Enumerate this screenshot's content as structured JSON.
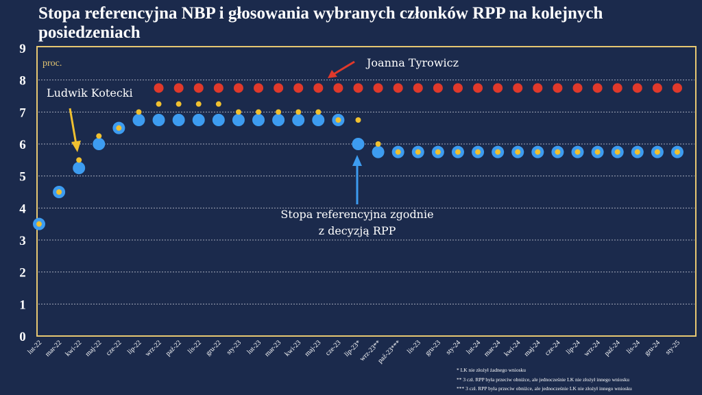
{
  "chart_data": {
    "type": "scatter",
    "title": "Stopa referencyjna NBP i głosowania wybranych członków RPP na kolejnych posiedzeniach",
    "ylabel": "proc.",
    "ylim": [
      0,
      9
    ],
    "yticks": [
      "0",
      "1",
      "2",
      "3",
      "4",
      "5",
      "6",
      "7",
      "8",
      "9"
    ],
    "grid": true,
    "categories": [
      "lut-22",
      "mar-22",
      "kwi-22",
      "maj-22",
      "cze-22",
      "lip-22",
      "wrz-22",
      "paź-22",
      "lis-22",
      "gru-22",
      "sty-23",
      "lut-23",
      "mar-23",
      "kwi-23",
      "maj-23",
      "cze-23",
      "lip-23*",
      "wrz-23**",
      "paź-23***",
      "lis-23",
      "gru-23",
      "sty-24",
      "lut-24",
      "mar-24",
      "kwi-24",
      "maj-24",
      "cze-24",
      "lip-24",
      "wrz-24",
      "paź-24",
      "lis-24",
      "gru-24",
      "sty-25"
    ],
    "series": [
      {
        "name": "Stopa referencyjna",
        "color": "#3d9cf0",
        "values": [
          3.5,
          4.5,
          5.25,
          6.0,
          6.5,
          6.75,
          6.75,
          6.75,
          6.75,
          6.75,
          6.75,
          6.75,
          6.75,
          6.75,
          6.75,
          6.75,
          6.0,
          5.75,
          5.75,
          5.75,
          5.75,
          5.75,
          5.75,
          5.75,
          5.75,
          5.75,
          5.75,
          5.75,
          5.75,
          5.75,
          5.75,
          5.75,
          5.75
        ]
      },
      {
        "name": "Joanna Tyrowicz",
        "color": "#e0392b",
        "values": [
          null,
          null,
          null,
          null,
          null,
          null,
          7.75,
          7.75,
          7.75,
          7.75,
          7.75,
          7.75,
          7.75,
          7.75,
          7.75,
          7.75,
          7.75,
          7.75,
          7.75,
          7.75,
          7.75,
          7.75,
          7.75,
          7.75,
          7.75,
          7.75,
          7.75,
          7.75,
          7.75,
          7.75,
          7.75,
          7.75,
          7.75
        ]
      },
      {
        "name": "Ludwik Kotecki",
        "color": "#f0c030",
        "values": [
          3.5,
          4.5,
          5.5,
          6.25,
          6.5,
          7.0,
          7.25,
          7.25,
          7.25,
          7.25,
          7.0,
          7.0,
          7.0,
          7.0,
          7.0,
          6.75,
          6.75,
          6.0,
          5.75,
          5.75,
          5.75,
          5.75,
          5.75,
          5.75,
          5.75,
          5.75,
          5.75,
          5.75,
          5.75,
          5.75,
          5.75,
          5.75,
          5.75
        ]
      }
    ],
    "annotations": {
      "kotecki": "Ludwik Kotecki",
      "tyrowicz": "Joanna Tyrowicz",
      "rate_line1": "Stopa referencyjna zgodnie",
      "rate_line2": "z decyzją RPP"
    },
    "footnotes": [
      "* LK nie złożył żadnego wniosku",
      "** 3 czł. RPP była przeciw obniżce, ale jednocześnie LK nie złożył innego wniosku",
      "*** 3 czł. RPP była przeciw obniżce, ale jednocześnie LK nie złożył innego wniosku"
    ]
  }
}
